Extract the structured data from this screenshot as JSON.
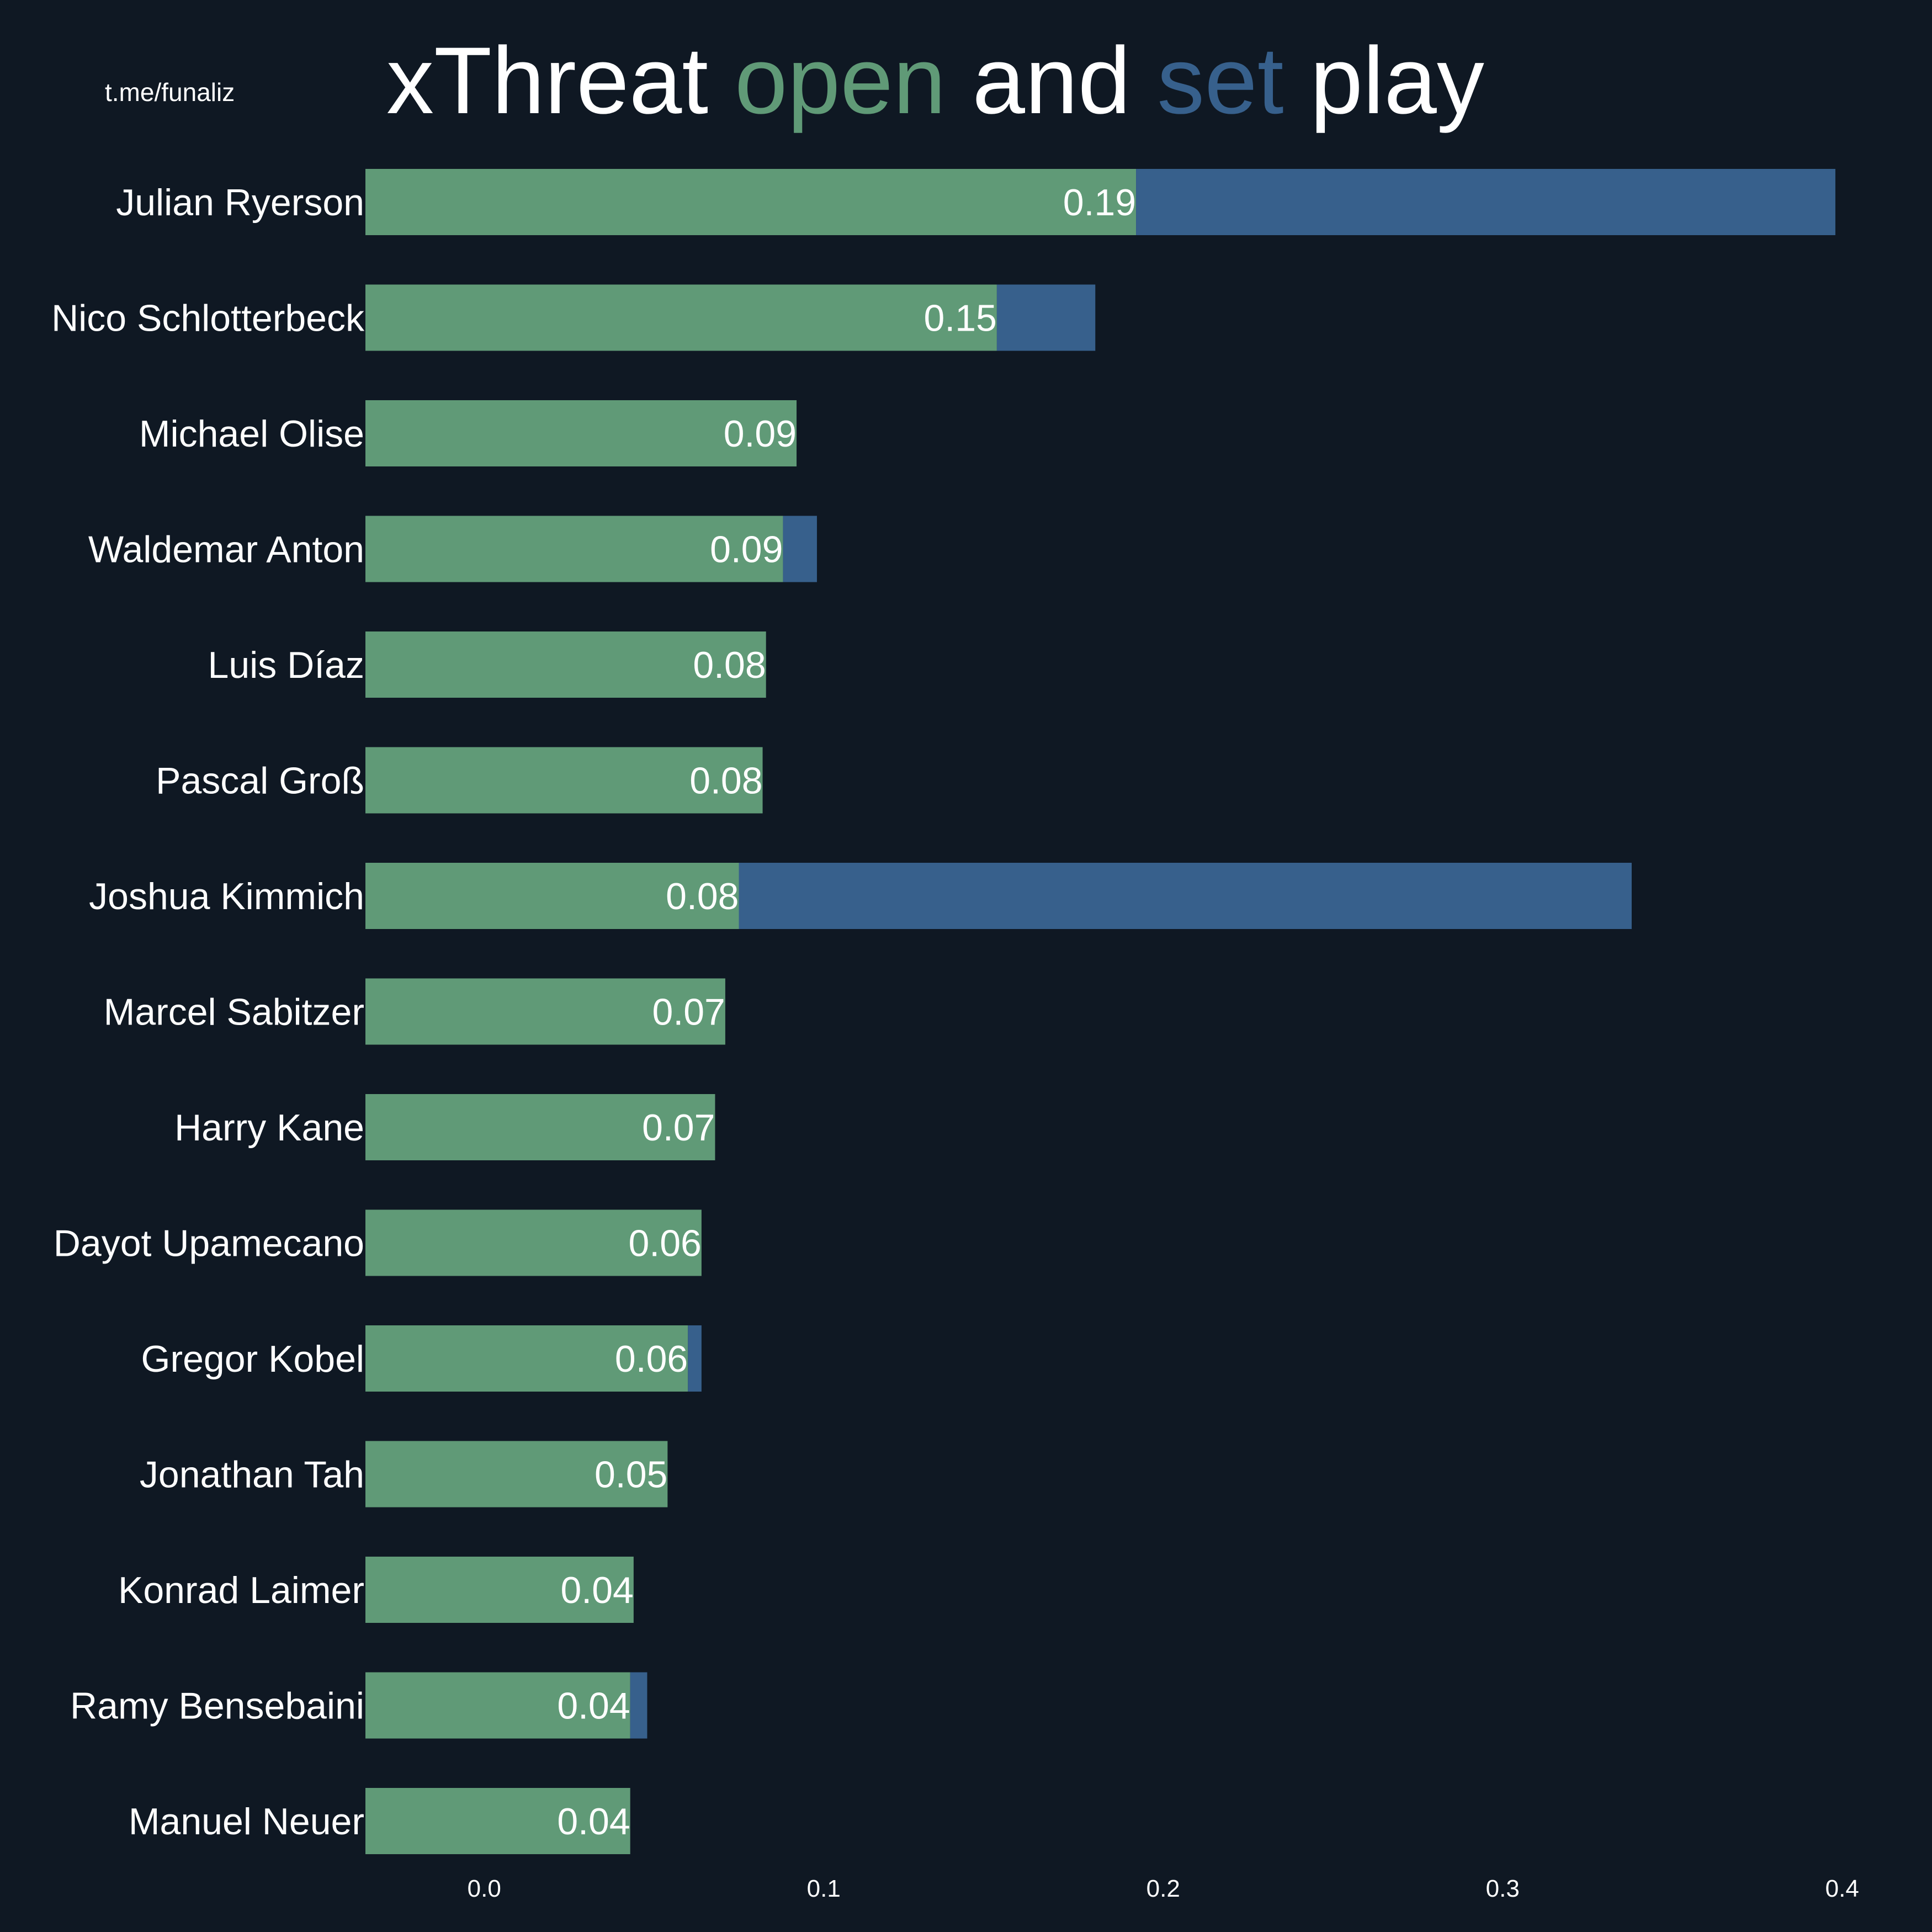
{
  "watermark": "t.me/funaliz",
  "title": {
    "parts": [
      {
        "text": "xThreat ",
        "color": "#ffffff"
      },
      {
        "text": "open",
        "color": "#609a77"
      },
      {
        "text": " and ",
        "color": "#ffffff"
      },
      {
        "text": "set",
        "color": "#37608c"
      },
      {
        "text": " play",
        "color": "#ffffff"
      }
    ]
  },
  "colors": {
    "background": "#0f1823",
    "open_play": "#609a77",
    "set_play": "#37608c",
    "text": "#ffffff"
  },
  "chart_data": {
    "type": "bar",
    "orientation": "horizontal",
    "stacked": true,
    "categories": [
      "Julian Ryerson",
      "Nico Schlotterbeck",
      "Michael Olise",
      "Waldemar Anton",
      "Luis Díaz",
      "Pascal Groß",
      "Joshua Kimmich",
      "Marcel Sabitzer",
      "Harry Kane",
      "Dayot Upamecano",
      "Gregor Kobel",
      "Jonathan Tah",
      "Konrad Laimer",
      "Ramy Bensebaini",
      "Manuel Neuer"
    ],
    "series": [
      {
        "key": "open",
        "color": "#609a77",
        "values": [
          0.192,
          0.151,
          0.092,
          0.088,
          0.083,
          0.082,
          0.075,
          0.071,
          0.068,
          0.064,
          0.06,
          0.054,
          0.044,
          0.043,
          0.043
        ]
      },
      {
        "key": "set",
        "color": "#37608c",
        "values": [
          0.206,
          0.029,
          0.0,
          0.01,
          0.0,
          0.0,
          0.263,
          0.0,
          0.0,
          0.0,
          0.004,
          0.0,
          0.0,
          0.005,
          0.0
        ]
      }
    ],
    "value_labels": [
      "0.19",
      "0.15",
      "0.09",
      "0.09",
      "0.08",
      "0.08",
      "0.08",
      "0.07",
      "0.07",
      "0.06",
      "0.06",
      "0.05",
      "0.04",
      "0.04",
      "0.04"
    ],
    "xlim": [
      -0.035,
      0.4
    ],
    "xticks": [
      0.0,
      0.1,
      0.2,
      0.3,
      0.4
    ],
    "xtick_labels": [
      "0.0",
      "0.1",
      "0.2",
      "0.3",
      "0.4"
    ],
    "xlabel": "",
    "ylabel": "",
    "grid": false,
    "legend": "none"
  }
}
